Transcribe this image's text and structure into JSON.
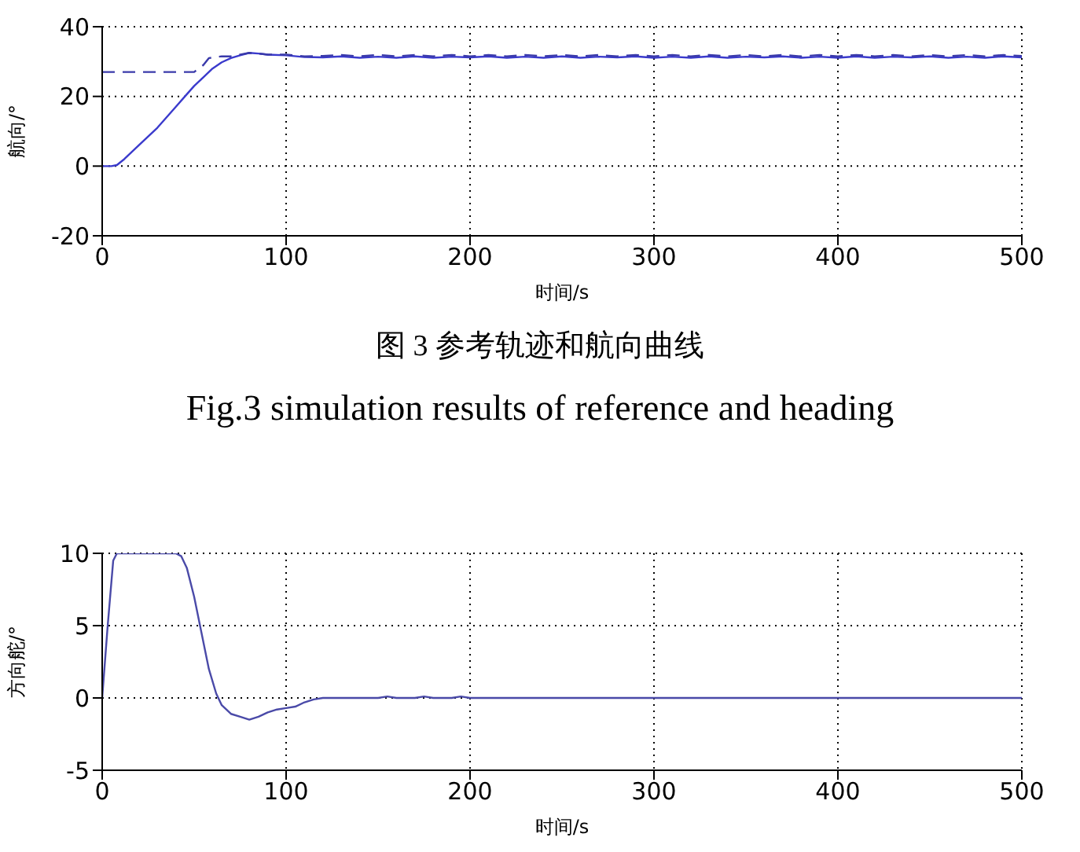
{
  "chart_data": [
    {
      "type": "line",
      "xlabel": "时间/s",
      "ylabel": "航向/°",
      "xlim": [
        0,
        500
      ],
      "xticks": [
        0,
        100,
        200,
        300,
        400,
        500
      ],
      "ylim": [
        -20,
        40
      ],
      "yticks": [
        -20,
        0,
        20,
        40
      ],
      "grid": true,
      "marker": "none",
      "annotations": [
        "图 3 参考轨迹和航向曲线",
        "Fig.3 simulation results of reference and heading"
      ],
      "series": [
        {
          "color": "#3a3acc",
          "line_style": "solid",
          "x": [
            0,
            5,
            8,
            12,
            20,
            30,
            40,
            45,
            50,
            55,
            60,
            65,
            70,
            75,
            80,
            85,
            90,
            100,
            110,
            120,
            130,
            140,
            150,
            160,
            170,
            180,
            190,
            200,
            210,
            220,
            230,
            240,
            250,
            260,
            270,
            280,
            290,
            300,
            310,
            320,
            330,
            340,
            350,
            360,
            370,
            380,
            390,
            400,
            410,
            420,
            430,
            440,
            450,
            460,
            470,
            480,
            490,
            500
          ],
          "values": [
            0,
            0,
            0.3,
            2,
            6,
            11,
            17,
            20,
            23,
            25.5,
            28,
            29.8,
            31,
            31.8,
            32.5,
            32.3,
            32,
            31.8,
            31.3,
            31.2,
            31.5,
            31.1,
            31.4,
            31.1,
            31.5,
            31.1,
            31.4,
            31.2,
            31.5,
            31.1,
            31.4,
            31.1,
            31.5,
            31.1,
            31.4,
            31.2,
            31.5,
            31.1,
            31.4,
            31.1,
            31.5,
            31.1,
            31.4,
            31.2,
            31.5,
            31.1,
            31.4,
            31.1,
            31.5,
            31.1,
            31.4,
            31.2,
            31.5,
            31.1,
            31.4,
            31.1,
            31.5,
            31.2
          ]
        },
        {
          "color": "#3a3aaa",
          "line_style": "dashed",
          "x": [
            0,
            50,
            55,
            58,
            65,
            70,
            80,
            85,
            90,
            100,
            110,
            120,
            130,
            140,
            150,
            160,
            170,
            180,
            190,
            200,
            210,
            220,
            230,
            240,
            250,
            260,
            270,
            280,
            290,
            300,
            310,
            320,
            330,
            340,
            350,
            360,
            370,
            380,
            390,
            400,
            410,
            420,
            430,
            440,
            450,
            460,
            470,
            480,
            490,
            500
          ],
          "values": [
            27,
            27,
            29,
            31,
            31.5,
            31.5,
            32.5,
            32.3,
            32,
            32,
            31.5,
            31.6,
            31.9,
            31.5,
            31.9,
            31.5,
            31.9,
            31.5,
            31.9,
            31.5,
            31.9,
            31.5,
            31.9,
            31.5,
            31.9,
            31.5,
            31.9,
            31.5,
            31.9,
            31.5,
            31.9,
            31.5,
            31.9,
            31.5,
            31.9,
            31.5,
            31.9,
            31.5,
            31.9,
            31.5,
            31.9,
            31.5,
            31.9,
            31.5,
            31.9,
            31.5,
            31.9,
            31.5,
            31.9,
            31.6
          ]
        }
      ]
    },
    {
      "type": "line",
      "xlabel": "时间/s",
      "ylabel": "方向舵/°",
      "xlim": [
        0,
        500
      ],
      "xticks": [
        0,
        100,
        200,
        300,
        400,
        500
      ],
      "ylim": [
        -5,
        10
      ],
      "yticks": [
        -5,
        0,
        5,
        10
      ],
      "grid": true,
      "marker": "none",
      "series": [
        {
          "color": "#4a4aa8",
          "line_style": "solid",
          "x": [
            0,
            3,
            6,
            8,
            10,
            20,
            30,
            40,
            43,
            46,
            50,
            54,
            58,
            62,
            65,
            70,
            75,
            80,
            85,
            90,
            95,
            100,
            105,
            110,
            115,
            120,
            125,
            150,
            155,
            160,
            170,
            175,
            180,
            190,
            195,
            200,
            300,
            400,
            500
          ],
          "values": [
            0,
            5,
            9.5,
            10,
            10,
            10,
            10,
            10,
            9.8,
            9,
            7,
            4.5,
            2,
            0.3,
            -0.5,
            -1.1,
            -1.3,
            -1.5,
            -1.3,
            -1,
            -0.8,
            -0.7,
            -0.6,
            -0.3,
            -0.1,
            0,
            0,
            0,
            0.1,
            0,
            0,
            0.1,
            0,
            0,
            0.1,
            0,
            0,
            0,
            0
          ]
        }
      ]
    }
  ]
}
